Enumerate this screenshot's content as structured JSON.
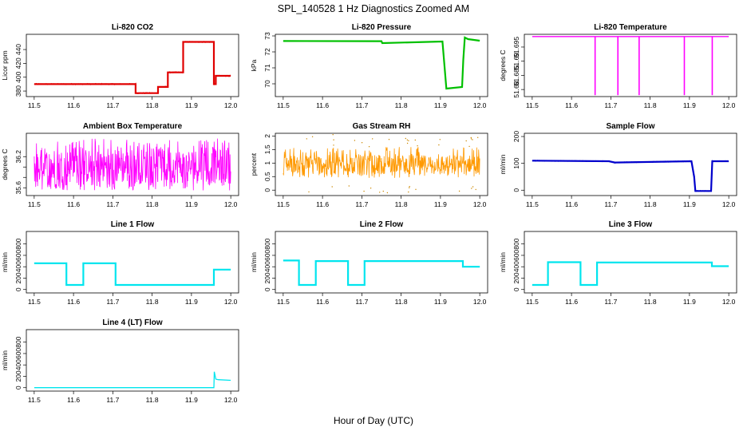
{
  "figure": {
    "title": "SPL_140528  1 Hz Diagnostics Zoomed AM",
    "xlabel": "Hour of Day (UTC)"
  },
  "chart_data": [
    {
      "id": "co2",
      "type": "line",
      "title": "Li-820 CO2",
      "ylabel": "Licor ppm",
      "color": "#e00000",
      "xlim": [
        11.5,
        12.0
      ],
      "ylim": [
        372,
        462
      ],
      "yticks": [
        380,
        400,
        420,
        440
      ],
      "noise": 1.0,
      "series": [
        {
          "x": [
            11.5,
            11.758,
            11.758,
            11.815,
            11.815,
            11.84,
            11.84,
            11.879,
            11.879,
            11.957,
            11.957,
            11.962,
            11.962,
            12.0
          ],
          "y": [
            390,
            390,
            377,
            377,
            386,
            386,
            407,
            407,
            451,
            451,
            390,
            390,
            402,
            402
          ]
        }
      ]
    },
    {
      "id": "pressure",
      "type": "line",
      "title": "Li-820 Pressure",
      "ylabel": "kPa",
      "color": "#00c000",
      "xlim": [
        11.5,
        12.0
      ],
      "ylim": [
        69.2,
        73.1
      ],
      "yticks": [
        70,
        71,
        72,
        73
      ],
      "noise": 0.01,
      "series": [
        {
          "x": [
            11.5,
            11.75,
            11.752,
            11.905,
            11.915,
            11.955,
            11.958,
            11.962,
            11.97,
            12.0
          ],
          "y": [
            72.68,
            72.67,
            72.55,
            72.65,
            69.7,
            69.8,
            71.5,
            72.9,
            72.8,
            72.7
          ]
        }
      ]
    },
    {
      "id": "temperature",
      "type": "line",
      "title": "Li-820 Temperature",
      "ylabel": "degrees C",
      "color": "#ff00ff",
      "xlim": [
        11.5,
        12.0
      ],
      "ylim": [
        51.6775,
        51.6995
      ],
      "yticks": [
        51.68,
        51.685,
        51.69,
        51.695
      ],
      "noise": 0,
      "series": [
        {
          "x": [
            11.5,
            12.0
          ],
          "y": [
            51.6987,
            51.6987
          ]
        }
      ],
      "spikes": [
        {
          "x": 11.66,
          "y": 51.678
        },
        {
          "x": 11.718,
          "y": 51.678
        },
        {
          "x": 11.772,
          "y": 51.678
        },
        {
          "x": 11.887,
          "y": 51.678
        },
        {
          "x": 11.958,
          "y": 51.678
        }
      ]
    },
    {
      "id": "ambient",
      "type": "line",
      "title": "Ambient Box Temperature",
      "ylabel": "degrees C",
      "color": "#ff00ff",
      "xlim": [
        11.5,
        12.0
      ],
      "ylim": [
        35.45,
        36.65
      ],
      "yticks": [
        35.6,
        35.8,
        36.0,
        36.2
      ],
      "ylabels": [
        "35.6",
        "",
        "",
        "36.2"
      ],
      "band": {
        "lo": 35.55,
        "hi": 36.55,
        "core_lo": 35.68,
        "core_hi": 36.35
      }
    },
    {
      "id": "rh",
      "type": "line",
      "title": "Gas Stream RH",
      "ylabel": "percent",
      "color": "#ff9900",
      "dots": "#cc8800",
      "xlim": [
        11.5,
        12.0
      ],
      "ylim": [
        -0.2,
        2.1
      ],
      "yticks": [
        0.0,
        0.5,
        1.0,
        1.5,
        2.0
      ],
      "band": {
        "lo": 0.45,
        "hi": 1.6,
        "core_lo": 0.65,
        "core_hi": 1.3
      }
    },
    {
      "id": "sample",
      "type": "line",
      "title": "Sample Flow",
      "ylabel": "ml/min",
      "color": "#0000cc",
      "xlim": [
        11.5,
        12.0
      ],
      "ylim": [
        -20,
        212
      ],
      "yticks": [
        0,
        100,
        200
      ],
      "noise": 2,
      "series": [
        {
          "x": [
            11.5,
            11.695,
            11.71,
            11.905,
            11.912,
            11.915,
            11.955,
            11.958,
            12.0
          ],
          "y": [
            110,
            108,
            103,
            108,
            50,
            -3,
            -3,
            108,
            108
          ]
        }
      ]
    },
    {
      "id": "line1",
      "type": "line",
      "title": "Line 1 Flow",
      "ylabel": "ml/min",
      "color": "#00e5ee",
      "xlim": [
        11.5,
        12.0
      ],
      "ylim": [
        -60,
        1020
      ],
      "yticks": [
        0,
        200,
        400,
        600,
        800
      ],
      "noise": 6,
      "series": [
        {
          "x": [
            11.5,
            11.582,
            11.582,
            11.625,
            11.625,
            11.707,
            11.707,
            11.957,
            11.957,
            12.0
          ],
          "y": [
            460,
            460,
            80,
            80,
            460,
            460,
            80,
            80,
            350,
            350
          ]
        }
      ]
    },
    {
      "id": "line2",
      "type": "line",
      "title": "Line 2 Flow",
      "ylabel": "ml/min",
      "color": "#00e5ee",
      "xlim": [
        11.5,
        12.0
      ],
      "ylim": [
        -60,
        1020
      ],
      "yticks": [
        0,
        200,
        400,
        600,
        800
      ],
      "noise": 6,
      "series": [
        {
          "x": [
            11.5,
            11.54,
            11.54,
            11.583,
            11.583,
            11.665,
            11.665,
            11.707,
            11.707,
            11.957,
            11.957,
            12.0
          ],
          "y": [
            510,
            510,
            80,
            80,
            500,
            500,
            80,
            80,
            500,
            500,
            400,
            400
          ]
        }
      ]
    },
    {
      "id": "line3",
      "type": "line",
      "title": "Line 3 Flow",
      "ylabel": "ml/min",
      "color": "#00e5ee",
      "xlim": [
        11.5,
        12.0
      ],
      "ylim": [
        -60,
        1020
      ],
      "yticks": [
        0,
        200,
        400,
        600,
        800
      ],
      "noise": 5,
      "series": [
        {
          "x": [
            11.5,
            11.54,
            11.54,
            11.623,
            11.623,
            11.665,
            11.665,
            11.957,
            11.957,
            12.0
          ],
          "y": [
            80,
            80,
            480,
            480,
            80,
            80,
            475,
            475,
            410,
            410
          ]
        }
      ]
    },
    {
      "id": "line4",
      "type": "line",
      "title": "Line 4 (LT) Flow",
      "ylabel": "ml/min",
      "color": "#00e5ee",
      "xlim": [
        11.5,
        12.0
      ],
      "ylim": [
        -60,
        1020
      ],
      "yticks": [
        0,
        200,
        400,
        600,
        800
      ],
      "noise": 0,
      "series": [
        {
          "x": [
            11.5,
            11.957,
            11.958,
            11.962,
            11.968,
            12.0
          ],
          "y": [
            0,
            0,
            280,
            150,
            140,
            130
          ]
        }
      ]
    }
  ],
  "x_axis": {
    "ticks": [
      11.5,
      11.6,
      11.7,
      11.8,
      11.9,
      12.0
    ],
    "labels": [
      "11.5",
      "11.6",
      "11.7",
      "11.8",
      "11.9",
      "12.0"
    ]
  }
}
